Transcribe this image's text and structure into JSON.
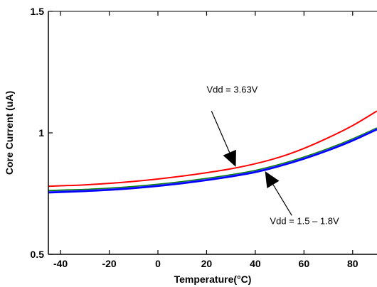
{
  "chart_data": {
    "type": "line",
    "xlabel": "Temperature(°C)",
    "ylabel": "Core Current (uA)",
    "xlim": [
      -45,
      90
    ],
    "ylim": [
      0.5,
      1.5
    ],
    "x_ticks": [
      -40,
      -20,
      0,
      20,
      40,
      60,
      80
    ],
    "y_ticks": [
      0.5,
      1,
      1.5
    ],
    "y_tick_labels": [
      "0.5",
      "1",
      "1.5"
    ],
    "grid": false,
    "series": [
      {
        "color": "#ff0000",
        "x": [
          -45,
          -40,
          -30,
          -20,
          -10,
          0,
          10,
          20,
          30,
          40,
          50,
          60,
          70,
          80,
          90
        ],
        "y": [
          0.78,
          0.782,
          0.786,
          0.792,
          0.8,
          0.81,
          0.822,
          0.836,
          0.852,
          0.873,
          0.9,
          0.936,
          0.98,
          1.03,
          1.09
        ]
      },
      {
        "color": "#008000",
        "x": [
          -45,
          -40,
          -30,
          -20,
          -10,
          0,
          10,
          20,
          30,
          40,
          50,
          60,
          70,
          80,
          90
        ],
        "y": [
          0.762,
          0.764,
          0.767,
          0.772,
          0.779,
          0.788,
          0.799,
          0.812,
          0.827,
          0.845,
          0.87,
          0.9,
          0.935,
          0.975,
          1.02
        ]
      },
      {
        "color": "#4d4dff",
        "x": [
          -45,
          -40,
          -30,
          -20,
          -10,
          0,
          10,
          20,
          30,
          40,
          50,
          60,
          70,
          80,
          90
        ],
        "y": [
          0.757,
          0.759,
          0.763,
          0.768,
          0.775,
          0.784,
          0.795,
          0.808,
          0.823,
          0.841,
          0.866,
          0.896,
          0.931,
          0.971,
          1.017
        ]
      },
      {
        "color": "#0000ff",
        "x": [
          -45,
          -40,
          -30,
          -20,
          -10,
          0,
          10,
          20,
          30,
          40,
          50,
          60,
          70,
          80,
          90
        ],
        "y": [
          0.754,
          0.756,
          0.76,
          0.765,
          0.772,
          0.781,
          0.792,
          0.805,
          0.82,
          0.838,
          0.863,
          0.893,
          0.928,
          0.968,
          1.014
        ]
      }
    ],
    "annotations": [
      {
        "text": "Vdd = 3.63V",
        "text_x": 20,
        "text_y": 1.165,
        "arrow_from": [
          22,
          1.09
        ],
        "arrow_to": [
          32,
          0.86
        ]
      },
      {
        "text": "Vdd = 1.5 – 1.8V",
        "text_x": 46,
        "text_y": 0.625,
        "arrow_from": [
          55,
          0.66
        ],
        "arrow_to": [
          44,
          0.842
        ]
      }
    ]
  }
}
